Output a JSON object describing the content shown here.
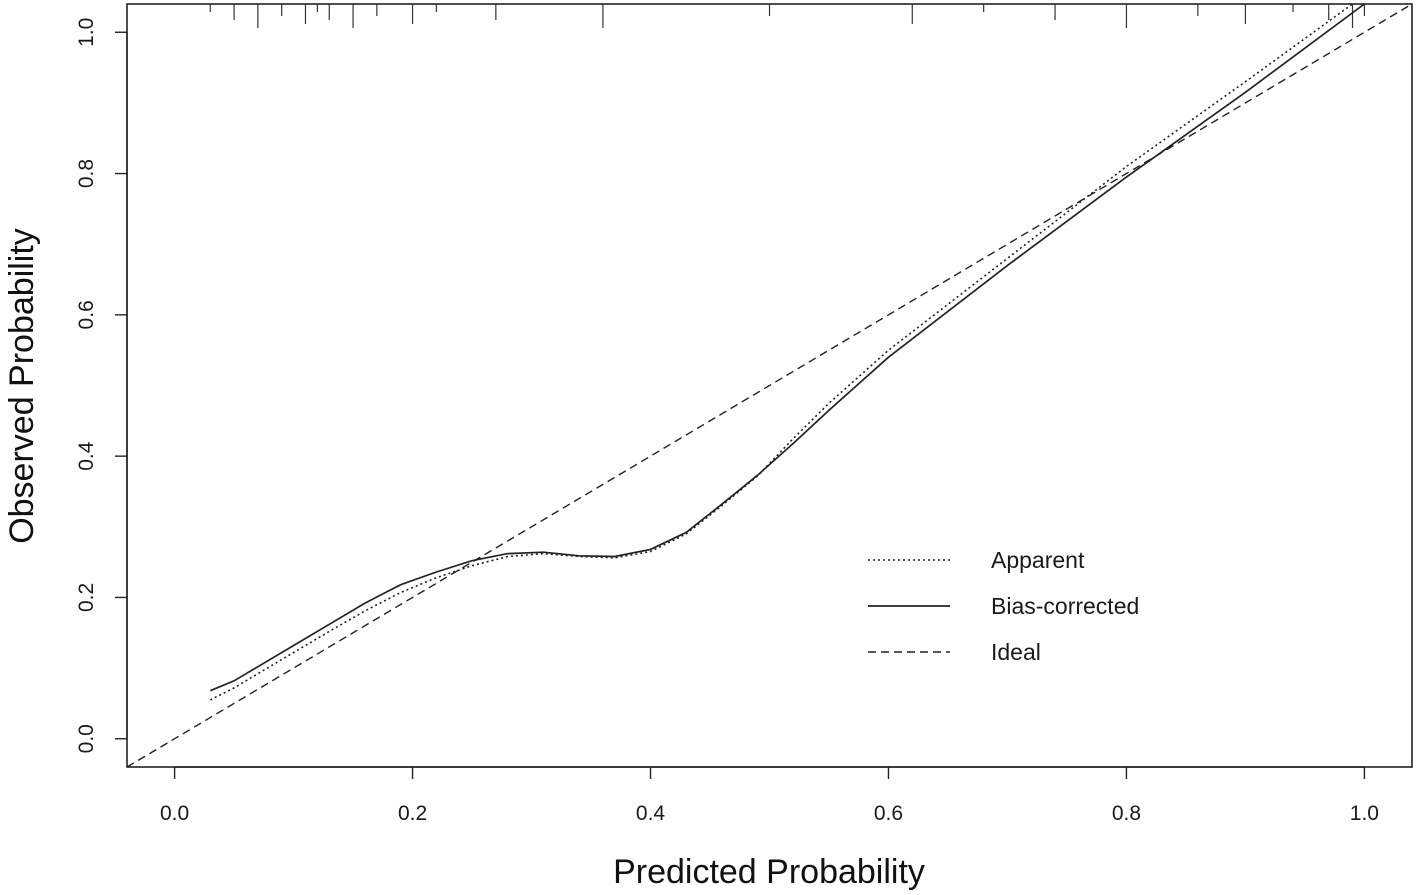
{
  "chart_data": {
    "type": "line",
    "title": "",
    "xlabel": "Predicted Probability",
    "ylabel": "Observed Probability",
    "xlim": [
      -0.04,
      1.04
    ],
    "ylim": [
      -0.04,
      1.04
    ],
    "x_ticks": [
      0.0,
      0.2,
      0.4,
      0.6,
      0.8,
      1.0
    ],
    "x_tick_labels": [
      "0.0",
      "0.2",
      "0.4",
      "0.6",
      "0.8",
      "1.0"
    ],
    "y_ticks": [
      0.0,
      0.2,
      0.4,
      0.6,
      0.8,
      1.0
    ],
    "y_tick_labels": [
      "0.0",
      "0.2",
      "0.4",
      "0.6",
      "0.8",
      "1.0"
    ],
    "legend_position": "bottom-right",
    "series": [
      {
        "name": "Apparent",
        "style": "dotted",
        "x": [
          0.03,
          0.05,
          0.07,
          0.1,
          0.13,
          0.16,
          0.19,
          0.22,
          0.25,
          0.28,
          0.31,
          0.34,
          0.37,
          0.4,
          0.43,
          0.46,
          0.49,
          0.52,
          0.55,
          0.6,
          0.7,
          0.8,
          0.9,
          0.99
        ],
        "y": [
          0.055,
          0.072,
          0.092,
          0.122,
          0.152,
          0.181,
          0.207,
          0.228,
          0.245,
          0.258,
          0.262,
          0.258,
          0.256,
          0.265,
          0.29,
          0.33,
          0.372,
          0.425,
          0.475,
          0.55,
          0.68,
          0.81,
          0.93,
          1.04
        ]
      },
      {
        "name": "Bias-corrected",
        "style": "solid",
        "x": [
          0.03,
          0.05,
          0.07,
          0.1,
          0.13,
          0.16,
          0.19,
          0.22,
          0.25,
          0.28,
          0.31,
          0.34,
          0.37,
          0.4,
          0.43,
          0.46,
          0.49,
          0.52,
          0.55,
          0.6,
          0.7,
          0.8,
          0.9,
          1.0
        ],
        "y": [
          0.068,
          0.082,
          0.102,
          0.132,
          0.162,
          0.192,
          0.218,
          0.236,
          0.252,
          0.262,
          0.264,
          0.259,
          0.258,
          0.268,
          0.292,
          0.332,
          0.373,
          0.418,
          0.465,
          0.54,
          0.67,
          0.795,
          0.915,
          1.04
        ]
      },
      {
        "name": "Ideal",
        "style": "dashed",
        "x": [
          -0.04,
          1.04
        ],
        "y": [
          -0.04,
          1.04
        ]
      }
    ],
    "rug": {
      "side": "top",
      "x": [
        0.03,
        0.05,
        0.07,
        0.09,
        0.11,
        0.12,
        0.13,
        0.15,
        0.17,
        0.2,
        0.22,
        0.27,
        0.36,
        0.5,
        0.62,
        0.68,
        0.74,
        0.8,
        0.86,
        0.9,
        0.94,
        0.97,
        0.99,
        1.0
      ]
    }
  }
}
